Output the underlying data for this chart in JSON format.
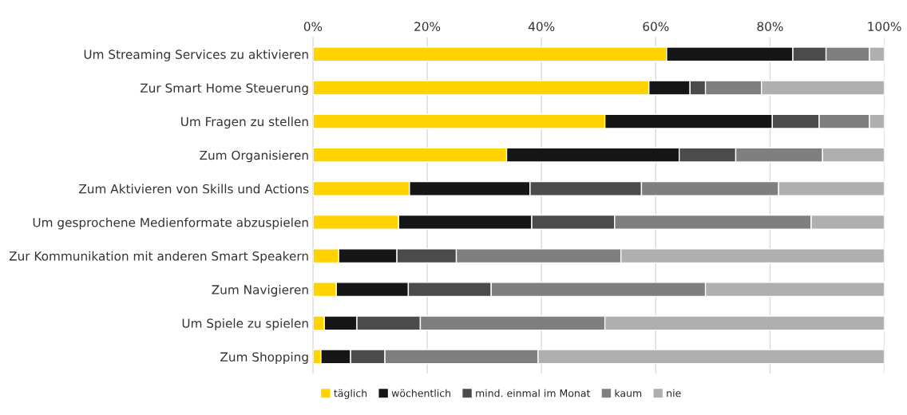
{
  "chart_data": {
    "type": "bar",
    "orientation": "horizontal",
    "stacked": true,
    "grid": "x",
    "legend": "bottom",
    "categories": [
      "Um Streaming Services zu aktivieren",
      "Zur Smart Home Steuerung",
      "Um Fragen zu stellen",
      "Zum Organisieren",
      "Zum Aktivieren von Skills und Actions",
      "Um gesprochene Medienformate abzuspielen",
      "Zur Kommunikation mit anderen Smart Speakern",
      "Zum Navigieren",
      "Um Spiele zu spielen",
      "Zum Shopping"
    ],
    "xlim": [
      0,
      100
    ],
    "xticks": [
      {
        "value": 0,
        "label": "0%"
      },
      {
        "value": 20,
        "label": "20%"
      },
      {
        "value": 40,
        "label": "40%"
      },
      {
        "value": 60,
        "label": "60%"
      },
      {
        "value": 80,
        "label": "80%"
      },
      {
        "value": 100,
        "label": "100%"
      }
    ],
    "series": [
      {
        "name": "täglich",
        "color": "#ffd200",
        "values": [
          61.9,
          58.8,
          51.1,
          33.9,
          16.9,
          15.0,
          4.5,
          4.1,
          2.0,
          1.4
        ]
      },
      {
        "name": "wöchentlich",
        "color": "#161616",
        "values": [
          22.1,
          7.2,
          29.3,
          30.2,
          21.1,
          23.3,
          10.2,
          12.6,
          5.7,
          5.2
        ]
      },
      {
        "name": "mind. einmal im Monat",
        "color": "#4b4b4b",
        "values": [
          5.8,
          2.7,
          8.2,
          9.9,
          19.5,
          14.5,
          10.4,
          14.5,
          11.1,
          6.0
        ]
      },
      {
        "name": "kaum",
        "color": "#7f7f7f",
        "values": [
          7.6,
          9.8,
          8.8,
          15.2,
          24.0,
          34.4,
          28.8,
          37.5,
          32.3,
          26.8
        ]
      },
      {
        "name": "nie",
        "color": "#afafaf",
        "values": [
          2.6,
          21.5,
          2.6,
          10.8,
          18.5,
          12.8,
          46.1,
          31.3,
          48.9,
          60.6
        ]
      }
    ]
  }
}
